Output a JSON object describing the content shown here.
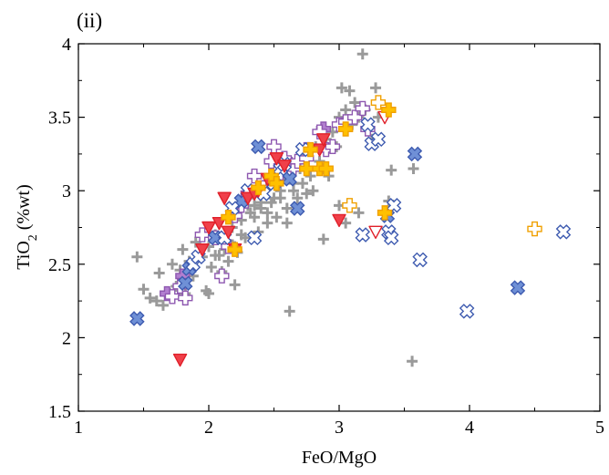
{
  "panel_label": "(ii)",
  "colors": {
    "gray": "#9a9a9a",
    "purple": "#8e58b0",
    "purple_fill": "#b27fd0",
    "blue": "#3e5bb0",
    "blue_fill": "#6f90d6",
    "red": "#e0202a",
    "red_fill": "#f0404a",
    "orange": "#f0a000",
    "orange_fill": "#ffc000"
  },
  "chart_data": {
    "type": "scatter",
    "panel": "(ii)",
    "xlabel": "FeO/MgO",
    "ylabel": {
      "main": "TiO",
      "sub": "2",
      "rest": " (%wt)"
    },
    "xlim": [
      1,
      5
    ],
    "ylim": [
      1.5,
      4
    ],
    "xticks": [
      "1",
      "2",
      "3",
      "4",
      "5"
    ],
    "yticks": [
      "1.5",
      "2",
      "2.5",
      "3",
      "3.5",
      "4"
    ],
    "grid": false,
    "series": [
      {
        "marker": "plus",
        "filled": true,
        "color": "gray",
        "points": [
          [
            1.45,
            2.55
          ],
          [
            1.5,
            2.33
          ],
          [
            1.55,
            2.27
          ],
          [
            1.6,
            2.25
          ],
          [
            1.62,
            2.44
          ],
          [
            1.65,
            2.22
          ],
          [
            1.7,
            2.3
          ],
          [
            1.72,
            2.5
          ],
          [
            1.75,
            2.35
          ],
          [
            1.78,
            2.46
          ],
          [
            1.8,
            2.6
          ],
          [
            1.82,
            2.3
          ],
          [
            1.85,
            2.52
          ],
          [
            1.88,
            2.42
          ],
          [
            1.9,
            2.65
          ],
          [
            1.95,
            2.55
          ],
          [
            1.98,
            2.32
          ],
          [
            2.0,
            2.62
          ],
          [
            2.02,
            2.48
          ],
          [
            2.05,
            2.7
          ],
          [
            2.08,
            2.56
          ],
          [
            2.1,
            2.45
          ],
          [
            2.12,
            2.6
          ],
          [
            2.15,
            2.52
          ],
          [
            2.18,
            2.75
          ],
          [
            2.2,
            2.62
          ],
          [
            2.22,
            2.58
          ],
          [
            2.25,
            2.8
          ],
          [
            2.28,
            2.68
          ],
          [
            2.3,
            2.95
          ],
          [
            2.32,
            2.85
          ],
          [
            2.35,
            2.9
          ],
          [
            2.38,
            2.72
          ],
          [
            2.4,
            2.88
          ],
          [
            2.42,
            3.0
          ],
          [
            2.45,
            2.85
          ],
          [
            2.48,
            2.92
          ],
          [
            2.5,
            3.05
          ],
          [
            2.52,
            2.82
          ],
          [
            2.55,
            2.95
          ],
          [
            2.58,
            3.1
          ],
          [
            2.6,
            2.88
          ],
          [
            2.62,
            3.2
          ],
          [
            2.65,
            3.0
          ],
          [
            2.68,
            2.95
          ],
          [
            2.7,
            3.15
          ],
          [
            2.72,
            3.05
          ],
          [
            2.75,
            3.25
          ],
          [
            2.78,
            3.1
          ],
          [
            2.8,
            3.0
          ],
          [
            2.82,
            3.3
          ],
          [
            2.85,
            3.2
          ],
          [
            2.88,
            3.15
          ],
          [
            2.9,
            3.35
          ],
          [
            2.92,
            3.1
          ],
          [
            2.95,
            3.4
          ],
          [
            2.98,
            3.3
          ],
          [
            3.0,
            3.5
          ],
          [
            3.02,
            3.7
          ],
          [
            3.05,
            3.55
          ],
          [
            3.08,
            3.68
          ],
          [
            3.1,
            3.45
          ],
          [
            3.12,
            3.6
          ],
          [
            3.15,
            3.5
          ],
          [
            3.18,
            3.93
          ],
          [
            3.2,
            3.55
          ],
          [
            3.25,
            3.35
          ],
          [
            3.28,
            3.7
          ],
          [
            3.3,
            3.5
          ],
          [
            2.62,
            2.18
          ],
          [
            2.88,
            2.67
          ],
          [
            3.0,
            2.9
          ],
          [
            3.15,
            2.85
          ],
          [
            3.4,
            3.14
          ],
          [
            3.38,
            2.93
          ],
          [
            3.57,
            3.15
          ],
          [
            3.56,
            1.84
          ],
          [
            3.05,
            2.78
          ],
          [
            2.6,
            2.78
          ],
          [
            2.2,
            2.36
          ],
          [
            2.0,
            2.3
          ],
          [
            2.3,
            2.9
          ],
          [
            2.4,
            2.92
          ],
          [
            2.5,
            2.95
          ],
          [
            2.55,
            3.0
          ],
          [
            2.65,
            3.05
          ],
          [
            2.75,
            2.98
          ],
          [
            2.45,
            2.78
          ],
          [
            2.35,
            2.82
          ],
          [
            2.25,
            2.7
          ],
          [
            2.15,
            2.66
          ],
          [
            2.05,
            2.56
          ]
        ]
      },
      {
        "marker": "plus",
        "filled": true,
        "color": "purple_fill",
        "stroke": "purple",
        "points": [
          [
            1.68,
            2.3
          ],
          [
            1.8,
            2.42
          ],
          [
            2.45,
            3.05
          ],
          [
            2.62,
            3.18
          ],
          [
            2.75,
            3.28
          ],
          [
            2.88,
            3.42
          ]
        ]
      },
      {
        "marker": "plus",
        "filled": false,
        "color": "purple",
        "points": [
          [
            1.72,
            2.28
          ],
          [
            1.78,
            2.35
          ],
          [
            1.82,
            2.27
          ],
          [
            1.95,
            2.7
          ],
          [
            2.05,
            2.68
          ],
          [
            2.1,
            2.42
          ],
          [
            2.15,
            2.62
          ],
          [
            2.2,
            2.83
          ],
          [
            2.25,
            2.9
          ],
          [
            2.3,
            2.98
          ],
          [
            2.35,
            3.1
          ],
          [
            2.42,
            3.02
          ],
          [
            2.48,
            3.2
          ],
          [
            2.5,
            3.3
          ],
          [
            2.55,
            3.12
          ],
          [
            2.58,
            3.22
          ],
          [
            2.65,
            3.15
          ],
          [
            2.68,
            3.2
          ],
          [
            2.75,
            3.22
          ],
          [
            2.85,
            3.4
          ],
          [
            2.9,
            3.28
          ],
          [
            2.95,
            3.3
          ],
          [
            3.0,
            3.45
          ],
          [
            3.05,
            3.47
          ],
          [
            3.12,
            3.5
          ],
          [
            3.18,
            3.56
          ],
          [
            3.22,
            3.42
          ]
        ]
      },
      {
        "marker": "x",
        "filled": true,
        "color": "blue_fill",
        "stroke": "blue",
        "points": [
          [
            1.45,
            2.13
          ],
          [
            1.82,
            2.37
          ],
          [
            1.85,
            2.47
          ],
          [
            2.05,
            2.68
          ],
          [
            2.25,
            2.93
          ],
          [
            2.38,
            3.3
          ],
          [
            2.62,
            3.08
          ],
          [
            2.68,
            2.88
          ],
          [
            3.37,
            2.83
          ],
          [
            3.58,
            3.25
          ],
          [
            4.37,
            2.34
          ]
        ]
      },
      {
        "marker": "x",
        "filled": false,
        "color": "blue",
        "points": [
          [
            1.88,
            2.5
          ],
          [
            1.92,
            2.55
          ],
          [
            2.12,
            2.68
          ],
          [
            2.18,
            2.88
          ],
          [
            2.3,
            3.0
          ],
          [
            2.35,
            2.68
          ],
          [
            2.42,
            2.98
          ],
          [
            2.5,
            3.05
          ],
          [
            2.55,
            3.15
          ],
          [
            2.58,
            3.18
          ],
          [
            2.72,
            3.28
          ],
          [
            3.18,
            2.7
          ],
          [
            3.22,
            3.45
          ],
          [
            3.25,
            3.32
          ],
          [
            3.3,
            3.35
          ],
          [
            3.38,
            2.72
          ],
          [
            3.4,
            2.68
          ],
          [
            3.42,
            2.9
          ],
          [
            3.62,
            2.53
          ],
          [
            3.98,
            2.18
          ],
          [
            4.72,
            2.72
          ]
        ]
      },
      {
        "marker": "triangle",
        "filled": true,
        "color": "red_fill",
        "stroke": "red",
        "points": [
          [
            1.78,
            1.85
          ],
          [
            1.95,
            2.6
          ],
          [
            2.0,
            2.75
          ],
          [
            2.08,
            2.78
          ],
          [
            2.12,
            2.95
          ],
          [
            2.15,
            2.72
          ],
          [
            2.2,
            2.6
          ],
          [
            2.3,
            2.95
          ],
          [
            2.35,
            2.98
          ],
          [
            2.38,
            3.0
          ],
          [
            2.45,
            3.08
          ],
          [
            2.52,
            3.22
          ],
          [
            2.58,
            3.17
          ],
          [
            2.85,
            3.28
          ],
          [
            2.88,
            3.35
          ],
          [
            3.0,
            2.8
          ]
        ]
      },
      {
        "marker": "triangle",
        "filled": false,
        "color": "red",
        "points": [
          [
            3.28,
            2.72
          ],
          [
            3.35,
            3.5
          ]
        ]
      },
      {
        "marker": "plus",
        "filled": true,
        "color": "orange_fill",
        "stroke": "orange",
        "points": [
          [
            2.15,
            2.82
          ],
          [
            2.2,
            2.6
          ],
          [
            2.38,
            3.02
          ],
          [
            2.48,
            3.1
          ],
          [
            2.52,
            3.05
          ],
          [
            2.75,
            3.15
          ],
          [
            2.78,
            3.28
          ],
          [
            2.85,
            3.15
          ],
          [
            2.9,
            3.15
          ],
          [
            3.05,
            3.42
          ],
          [
            3.35,
            2.85
          ],
          [
            3.38,
            3.55
          ]
        ]
      },
      {
        "marker": "plus",
        "filled": false,
        "color": "orange",
        "points": [
          [
            3.08,
            2.9
          ],
          [
            3.3,
            3.6
          ],
          [
            4.5,
            2.74
          ]
        ]
      }
    ]
  }
}
